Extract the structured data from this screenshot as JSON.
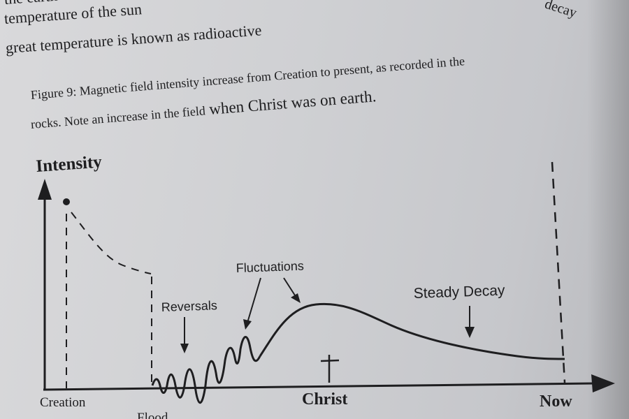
{
  "body_text": {
    "line1": "the earth",
    "line2": "temperature of the sun",
    "line3": "great temperature is known as radioactive",
    "right_fragment": "decay"
  },
  "caption": {
    "line1": "Figure 9:  Magnetic field intensity increase from Creation to present, as recorded in the",
    "line2_prefix": "rocks.  Note an increase in the field",
    "line2_suffix": " when Christ was on earth."
  },
  "diagram": {
    "y_axis_label": "Intensity",
    "x_axis_labels": {
      "creation": "Creation",
      "flood": "Flood",
      "christ": "Christ",
      "now": "Now"
    },
    "annotations": {
      "reversals": "Reversals",
      "fluctuations": "Fluctuations",
      "steady_decay": "Steady Decay"
    },
    "colors": {
      "ink": "#1e1e20"
    },
    "symbols": {
      "christ_marker": "cross-icon"
    }
  }
}
